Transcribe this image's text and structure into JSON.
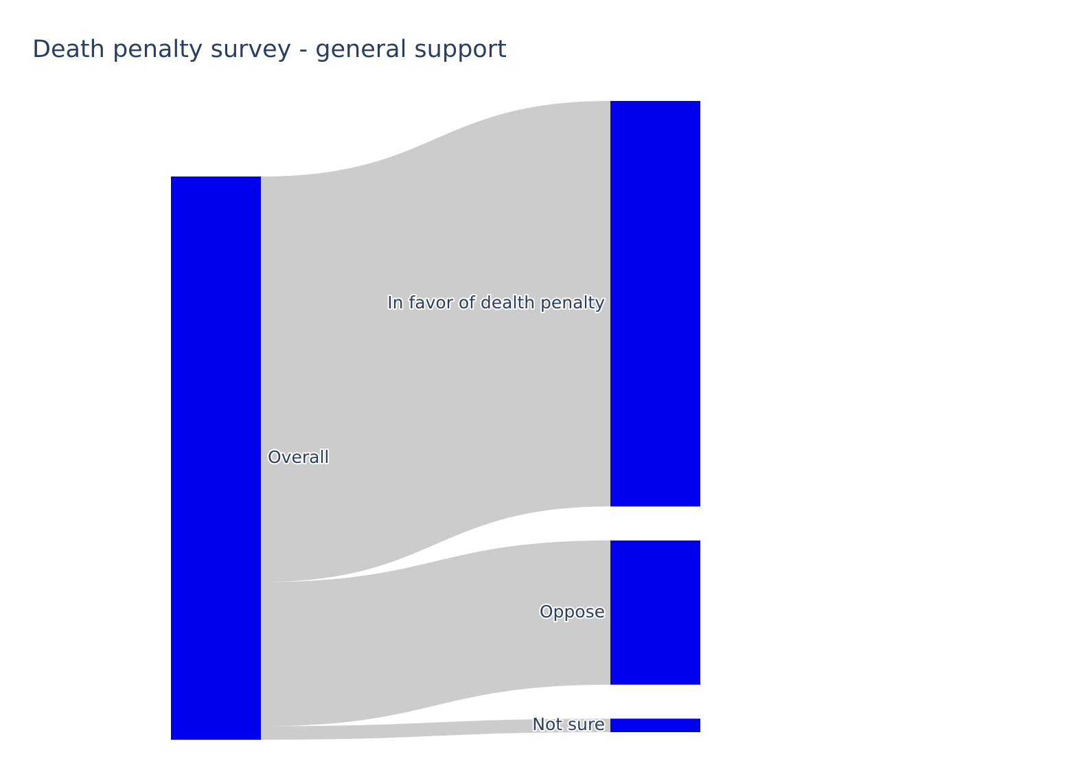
{
  "chart_data": {
    "type": "sankey",
    "title": "Death penalty survey - general support",
    "nodes": [
      {
        "label": "Overall"
      },
      {
        "label": "In favor of dealth penalty"
      },
      {
        "label": "Oppose"
      },
      {
        "label": "Not sure"
      }
    ],
    "links": [
      {
        "source": 0,
        "target": 1,
        "value": 72
      },
      {
        "source": 0,
        "target": 2,
        "value": 25.6
      },
      {
        "source": 0,
        "target": 3,
        "value": 2.4
      }
    ],
    "colors": {
      "node": "#0000ee",
      "link": "#cccccc",
      "text": "#2a3f5f"
    }
  }
}
